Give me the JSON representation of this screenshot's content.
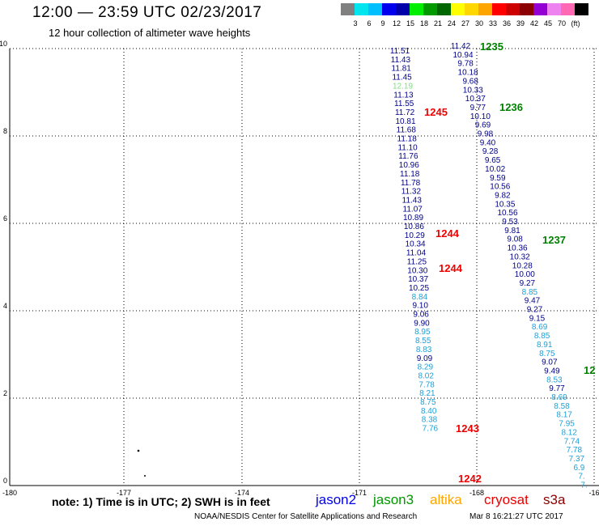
{
  "header": {
    "title": "12:00 — 23:59 UTC 02/23/2017",
    "subtitle": "12 hour collection of altimeter wave heights"
  },
  "colorbar": {
    "colors": [
      "#808080",
      "#00e5ee",
      "#00bfff",
      "#0000ee",
      "#0000aa",
      "#00ee00",
      "#009900",
      "#006600",
      "#ffff00",
      "#ffd700",
      "#ffa500",
      "#ff0000",
      "#cd0000",
      "#8b0000",
      "#9400d3",
      "#ee82ee",
      "#ff69b4",
      "#000000"
    ],
    "labels": [
      "3",
      "6",
      "9",
      "12",
      "15",
      "18",
      "21",
      "24",
      "27",
      "30",
      "33",
      "36",
      "39",
      "42",
      "45",
      "70",
      "(ft)"
    ]
  },
  "axes": {
    "x_ticks": [
      "-180",
      "-177",
      "-174",
      "-171",
      "-168",
      "-16"
    ],
    "y_ticks": [
      "0",
      "2",
      "4",
      "6",
      "8",
      "10"
    ]
  },
  "tracks": [
    {
      "name": "left",
      "points": [
        {
          "v": "11.51",
          "c": "#00008b"
        },
        {
          "v": "11.43",
          "c": "#00008b"
        },
        {
          "v": "11.81",
          "c": "#00008b"
        },
        {
          "v": "11.45",
          "c": "#00008b"
        },
        {
          "v": "12.19",
          "c": "#7fdd7f"
        },
        {
          "v": "11.13",
          "c": "#00008b"
        },
        {
          "v": "11.55",
          "c": "#00008b"
        },
        {
          "v": "11.72",
          "c": "#00008b"
        },
        {
          "v": "10.81",
          "c": "#00008b"
        },
        {
          "v": "11.68",
          "c": "#00008b"
        },
        {
          "v": "11.18",
          "c": "#00008b"
        },
        {
          "v": "11.10",
          "c": "#00008b"
        },
        {
          "v": "11.76",
          "c": "#00008b"
        },
        {
          "v": "10.96",
          "c": "#00008b"
        },
        {
          "v": "11.18",
          "c": "#00008b"
        },
        {
          "v": "11.78",
          "c": "#00008b"
        },
        {
          "v": "11.32",
          "c": "#00008b"
        },
        {
          "v": "11.43",
          "c": "#00008b"
        },
        {
          "v": "11.07",
          "c": "#00008b"
        },
        {
          "v": "10.89",
          "c": "#00008b"
        },
        {
          "v": "10.86",
          "c": "#00008b"
        },
        {
          "v": "10.29",
          "c": "#00008b"
        },
        {
          "v": "10.34",
          "c": "#00008b"
        },
        {
          "v": "11.04",
          "c": "#00008b"
        },
        {
          "v": "11.25",
          "c": "#00008b"
        },
        {
          "v": "10.30",
          "c": "#00008b"
        },
        {
          "v": "10.37",
          "c": "#00008b"
        },
        {
          "v": "10.25",
          "c": "#00008b"
        },
        {
          "v": "8.84",
          "c": "#1ea0d8"
        },
        {
          "v": "9.10",
          "c": "#00008b"
        },
        {
          "v": "9.06",
          "c": "#00008b"
        },
        {
          "v": "9.90",
          "c": "#00008b"
        },
        {
          "v": "8.95",
          "c": "#1ea0d8"
        },
        {
          "v": "8.55",
          "c": "#1ea0d8"
        },
        {
          "v": "8.83",
          "c": "#1ea0d8"
        },
        {
          "v": "9.09",
          "c": "#00008b"
        },
        {
          "v": "8.29",
          "c": "#1ea0d8"
        },
        {
          "v": "8.02",
          "c": "#1ea0d8"
        },
        {
          "v": "7.78",
          "c": "#1ea0d8"
        },
        {
          "v": "8.21",
          "c": "#1ea0d8"
        },
        {
          "v": "8.75",
          "c": "#1ea0d8"
        },
        {
          "v": "8.40",
          "c": "#1ea0d8"
        },
        {
          "v": "8.38",
          "c": "#1ea0d8"
        },
        {
          "v": "7.76",
          "c": "#1ea0d8"
        }
      ]
    },
    {
      "name": "right",
      "points": [
        {
          "v": "11.42",
          "c": "#00008b"
        },
        {
          "v": "10.94",
          "c": "#00008b"
        },
        {
          "v": "9.78",
          "c": "#00008b"
        },
        {
          "v": "10.18",
          "c": "#00008b"
        },
        {
          "v": "9.68",
          "c": "#00008b"
        },
        {
          "v": "10.33",
          "c": "#00008b"
        },
        {
          "v": "10.37",
          "c": "#00008b"
        },
        {
          "v": "9.77",
          "c": "#00008b"
        },
        {
          "v": "10.10",
          "c": "#00008b"
        },
        {
          "v": "9.69",
          "c": "#00008b"
        },
        {
          "v": "9.98",
          "c": "#00008b"
        },
        {
          "v": "9.40",
          "c": "#00008b"
        },
        {
          "v": "9.28",
          "c": "#00008b"
        },
        {
          "v": "9.65",
          "c": "#00008b"
        },
        {
          "v": "10.02",
          "c": "#00008b"
        },
        {
          "v": "9.59",
          "c": "#00008b"
        },
        {
          "v": "10.56",
          "c": "#00008b"
        },
        {
          "v": "9.82",
          "c": "#00008b"
        },
        {
          "v": "10.35",
          "c": "#00008b"
        },
        {
          "v": "10.56",
          "c": "#00008b"
        },
        {
          "v": "9.53",
          "c": "#00008b"
        },
        {
          "v": "9.81",
          "c": "#00008b"
        },
        {
          "v": "9.08",
          "c": "#00008b"
        },
        {
          "v": "10.36",
          "c": "#00008b"
        },
        {
          "v": "10.32",
          "c": "#00008b"
        },
        {
          "v": "10.28",
          "c": "#00008b"
        },
        {
          "v": "10.00",
          "c": "#00008b"
        },
        {
          "v": "9.27",
          "c": "#00008b"
        },
        {
          "v": "8.85",
          "c": "#1ea0d8"
        },
        {
          "v": "9.47",
          "c": "#00008b"
        },
        {
          "v": "9.27",
          "c": "#00008b"
        },
        {
          "v": "9.15",
          "c": "#00008b"
        },
        {
          "v": "8.69",
          "c": "#1ea0d8"
        },
        {
          "v": "8.85",
          "c": "#1ea0d8"
        },
        {
          "v": "8.91",
          "c": "#1ea0d8"
        },
        {
          "v": "8.75",
          "c": "#1ea0d8"
        },
        {
          "v": "9.07",
          "c": "#00008b"
        },
        {
          "v": "9.49",
          "c": "#00008b"
        },
        {
          "v": "8.53",
          "c": "#1ea0d8"
        },
        {
          "v": "9.77",
          "c": "#00008b"
        },
        {
          "v": "8.69",
          "c": "#1ea0d8"
        },
        {
          "v": "8.58",
          "c": "#1ea0d8"
        },
        {
          "v": "8.17",
          "c": "#1ea0d8"
        },
        {
          "v": "7.95",
          "c": "#1ea0d8"
        },
        {
          "v": "8.12",
          "c": "#1ea0d8"
        },
        {
          "v": "7.74",
          "c": "#1ea0d8"
        },
        {
          "v": "7.78",
          "c": "#1ea0d8"
        },
        {
          "v": "7.37",
          "c": "#1ea0d8"
        },
        {
          "v": "6.9",
          "c": "#1ea0d8"
        },
        {
          "v": "7.",
          "c": "#1ea0d8"
        },
        {
          "v": "7.",
          "c": "#1ea0d8"
        }
      ]
    }
  ],
  "pass_labels": [
    {
      "text": "1235",
      "color": "#008000"
    },
    {
      "text": "1245",
      "color": "#ee0000"
    },
    {
      "text": "1236",
      "color": "#008000"
    },
    {
      "text": "1244",
      "color": "#ee0000"
    },
    {
      "text": "1237",
      "color": "#008000"
    },
    {
      "text": "1244",
      "color": "#ee0000"
    },
    {
      "text": "12",
      "color": "#008000"
    },
    {
      "text": "1243",
      "color": "#ee0000"
    },
    {
      "text": "1242",
      "color": "#ee0000"
    }
  ],
  "footer": {
    "note": "note:  1) Time is in UTC;  2) SWH is in feet",
    "satellites": [
      {
        "name": "jason2",
        "color": "#0000ee"
      },
      {
        "name": "jason3",
        "color": "#009900"
      },
      {
        "name": "altika",
        "color": "#ffa500"
      },
      {
        "name": "cryosat",
        "color": "#ee0000"
      },
      {
        "name": "s3a",
        "color": "#8b0000"
      }
    ],
    "credit": "NOAA/NESDIS Center for Satellite Applications and Research",
    "timestamp": "Mar  8 16:21:27 UTC 2017"
  }
}
